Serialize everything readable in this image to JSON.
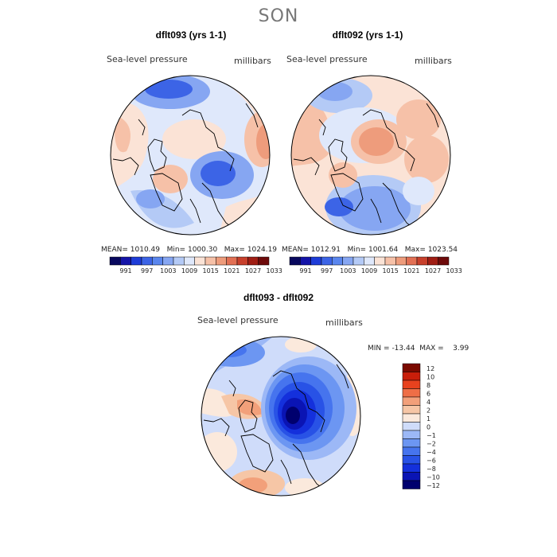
{
  "season": "SON",
  "panels": [
    {
      "title": "dflt093 (yrs 1-1)",
      "variable": "Sea-level pressure",
      "units": "millibars",
      "stats": {
        "mean_label": "MEAN=",
        "mean": "1010.49",
        "min_label": "Min=",
        "min": "1000.30",
        "max_label": "Max=",
        "max": "1024.19"
      }
    },
    {
      "title": "dflt092 (yrs 1-1)",
      "variable": "Sea-level pressure",
      "units": "millibars",
      "stats": {
        "mean_label": "MEAN=",
        "mean": "1012.91",
        "min_label": "Min=",
        "min": "1001.64",
        "max_label": "Max=",
        "max": "1023.54"
      }
    },
    {
      "title": "dflt093 - dflt092",
      "variable": "Sea-level pressure",
      "units": "millibars",
      "stats": {
        "min_label": "MIN =",
        "min": "-13.44",
        "max_label": "MAX =",
        "max": "3.99"
      }
    }
  ],
  "colors": {
    "abs_palette": [
      "#08085e",
      "#1414a8",
      "#1e3cd8",
      "#3c64e6",
      "#5a86ee",
      "#86a6f2",
      "#b4caf6",
      "#dfe8fb",
      "#fbe3d6",
      "#f6c1a8",
      "#ee9c7c",
      "#e27054",
      "#c8402c",
      "#a01e14",
      "#6e0a0a"
    ],
    "diff_palette": [
      "#00006e",
      "#0a14b4",
      "#1430dc",
      "#2852e6",
      "#4674ee",
      "#6c96f2",
      "#9cb8f6",
      "#cfdcfa",
      "#fbe9dc",
      "#f6c6a6",
      "#f2a07a",
      "#ee6e46",
      "#e8421e",
      "#c81e0a",
      "#7a0a00"
    ]
  },
  "chart_data": [
    {
      "type": "contour-map",
      "projection": "north-polar-stereographic",
      "title": "dflt093 (yrs 1-1)",
      "variable": "Sea-level pressure",
      "units": "millibars",
      "colorbar_ticks": [
        "991",
        "997",
        "1003",
        "1009",
        "1015",
        "1021",
        "1027",
        "1033"
      ],
      "levels": [
        988,
        991,
        994,
        997,
        1000,
        1003,
        1006,
        1009,
        1012,
        1015,
        1018,
        1021,
        1024,
        1027,
        1030,
        1033
      ],
      "mean": 1010.49,
      "min": 1000.3,
      "max": 1024.19
    },
    {
      "type": "contour-map",
      "projection": "north-polar-stereographic",
      "title": "dflt092 (yrs 1-1)",
      "variable": "Sea-level pressure",
      "units": "millibars",
      "colorbar_ticks": [
        "991",
        "997",
        "1003",
        "1009",
        "1015",
        "1021",
        "1027",
        "1033"
      ],
      "levels": [
        988,
        991,
        994,
        997,
        1000,
        1003,
        1006,
        1009,
        1012,
        1015,
        1018,
        1021,
        1024,
        1027,
        1030,
        1033
      ],
      "mean": 1012.91,
      "min": 1001.64,
      "max": 1023.54
    },
    {
      "type": "contour-map",
      "projection": "north-polar-stereographic",
      "title": "dflt093 - dflt092",
      "variable": "Sea-level pressure",
      "units": "millibars",
      "colorbar_ticks": [
        "12",
        "10",
        "8",
        "6",
        "4",
        "2",
        "1",
        "0",
        "−1",
        "−2",
        "−4",
        "−6",
        "−8",
        "−10",
        "−12"
      ],
      "min": -13.44,
      "max": 3.99
    }
  ]
}
